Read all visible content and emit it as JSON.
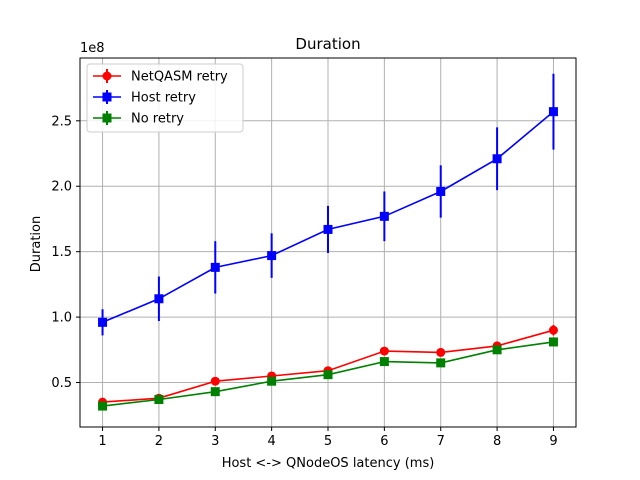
{
  "chart_data": {
    "type": "line",
    "title": "Duration",
    "xlabel": "Host <-> QNodeOS latency (ms)",
    "ylabel": "Duration",
    "y_multiplier_label": "1e8",
    "x_ticks": [
      1,
      2,
      3,
      4,
      5,
      6,
      7,
      8,
      9
    ],
    "y_ticks": [
      0.5,
      1.0,
      1.5,
      2.0,
      2.5
    ],
    "y_tick_labels": [
      "0.5",
      "1.0",
      "1.5",
      "2.0",
      "2.5"
    ],
    "xlim": [
      0.6,
      9.4
    ],
    "ylim": [
      0.16,
      2.98
    ],
    "grid": true,
    "legend_position": "top-left",
    "x": [
      1,
      2,
      3,
      4,
      5,
      6,
      7,
      8,
      9
    ],
    "series": [
      {
        "name": "NetQASM retry",
        "color": "#ff0000",
        "marker": "circle",
        "values": [
          0.35,
          0.38,
          0.51,
          0.55,
          0.59,
          0.74,
          0.73,
          0.78,
          0.9
        ],
        "errors": [
          0.015,
          0.015,
          0.02,
          0.02,
          0.02,
          0.03,
          0.025,
          0.03,
          0.04
        ]
      },
      {
        "name": "Host retry",
        "color": "#0000ff",
        "marker": "square",
        "values": [
          0.96,
          1.14,
          1.38,
          1.47,
          1.67,
          1.77,
          1.96,
          2.21,
          2.57
        ],
        "errors": [
          0.1,
          0.17,
          0.2,
          0.17,
          0.18,
          0.19,
          0.2,
          0.24,
          0.29
        ]
      },
      {
        "name": "No retry",
        "color": "#008000",
        "marker": "square",
        "values": [
          0.32,
          0.37,
          0.43,
          0.51,
          0.56,
          0.66,
          0.65,
          0.75,
          0.81
        ],
        "errors": [
          0.01,
          0.01,
          0.01,
          0.015,
          0.015,
          0.02,
          0.02,
          0.02,
          0.025
        ]
      }
    ]
  }
}
